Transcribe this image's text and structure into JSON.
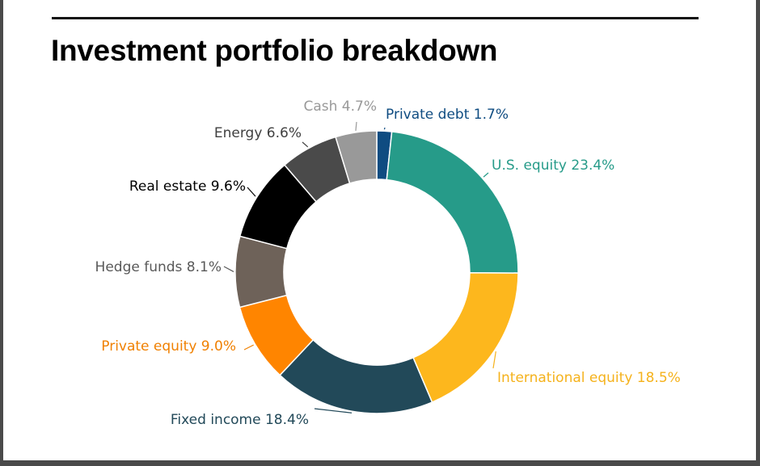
{
  "chart_data": {
    "type": "pie",
    "variant": "donut",
    "title": "Investment portfolio breakdown",
    "unit": "%",
    "legend": "none",
    "slices": [
      {
        "label": "Private debt",
        "value": 1.7,
        "color": "#0f4c81"
      },
      {
        "label": "U.S. equity",
        "value": 23.4,
        "color": "#269b89"
      },
      {
        "label": "International equity",
        "value": 18.5,
        "color": "#fdb71d"
      },
      {
        "label": "Fixed income",
        "value": 18.4,
        "color": "#224959"
      },
      {
        "label": "Private equity",
        "value": 9.0,
        "color": "#ff8500"
      },
      {
        "label": "Hedge funds",
        "value": 8.1,
        "color": "#6e6259"
      },
      {
        "label": "Real estate",
        "value": 9.6,
        "color": "#000000"
      },
      {
        "label": "Energy",
        "value": 6.6,
        "color": "#4a4a4a"
      },
      {
        "label": "Cash",
        "value": 4.7,
        "color": "#999999"
      }
    ],
    "label_colors": {
      "Private debt": "#0f4c81",
      "U.S. equity": "#269b89",
      "International equity": "#f5b21c",
      "Fixed income": "#224959",
      "Private equity": "#f08000",
      "Hedge funds": "#595959",
      "Real estate": "#000000",
      "Energy": "#404040",
      "Cash": "#999999"
    }
  }
}
